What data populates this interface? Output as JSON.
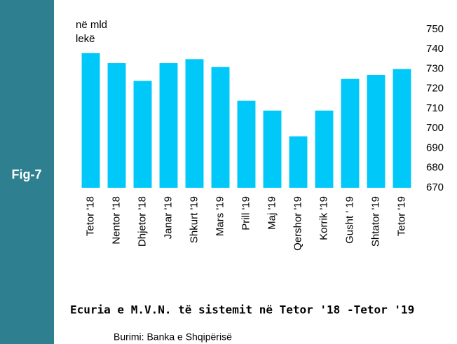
{
  "sidebar": {
    "label": "Fig-7"
  },
  "chart_data": {
    "type": "bar",
    "title": "Ecuria e M.V.N. të sistemit në Tetor '18 -Tetor '19",
    "source": "Burimi: Banka e Shqipërisë",
    "y_label": [
      "në mld",
      "lekë"
    ],
    "categories": [
      "Tetor '18",
      "Nentor '18",
      "Dhjetor '18",
      "Janar '19",
      "Shkurt '19",
      "Mars '19",
      "Prill '19",
      "Maj '19",
      "Qershor '19",
      "Korrik '19",
      "Gusht ' 19",
      "Shtator '19",
      "Tetor '19"
    ],
    "values": [
      738,
      733,
      724,
      733,
      735,
      731,
      714,
      709,
      696,
      709,
      725,
      727,
      730
    ],
    "color": "#00c8f8",
    "ylim": [
      670,
      750
    ],
    "yticks": [
      670,
      680,
      690,
      700,
      710,
      720,
      730,
      740,
      750
    ],
    "grid": false
  }
}
